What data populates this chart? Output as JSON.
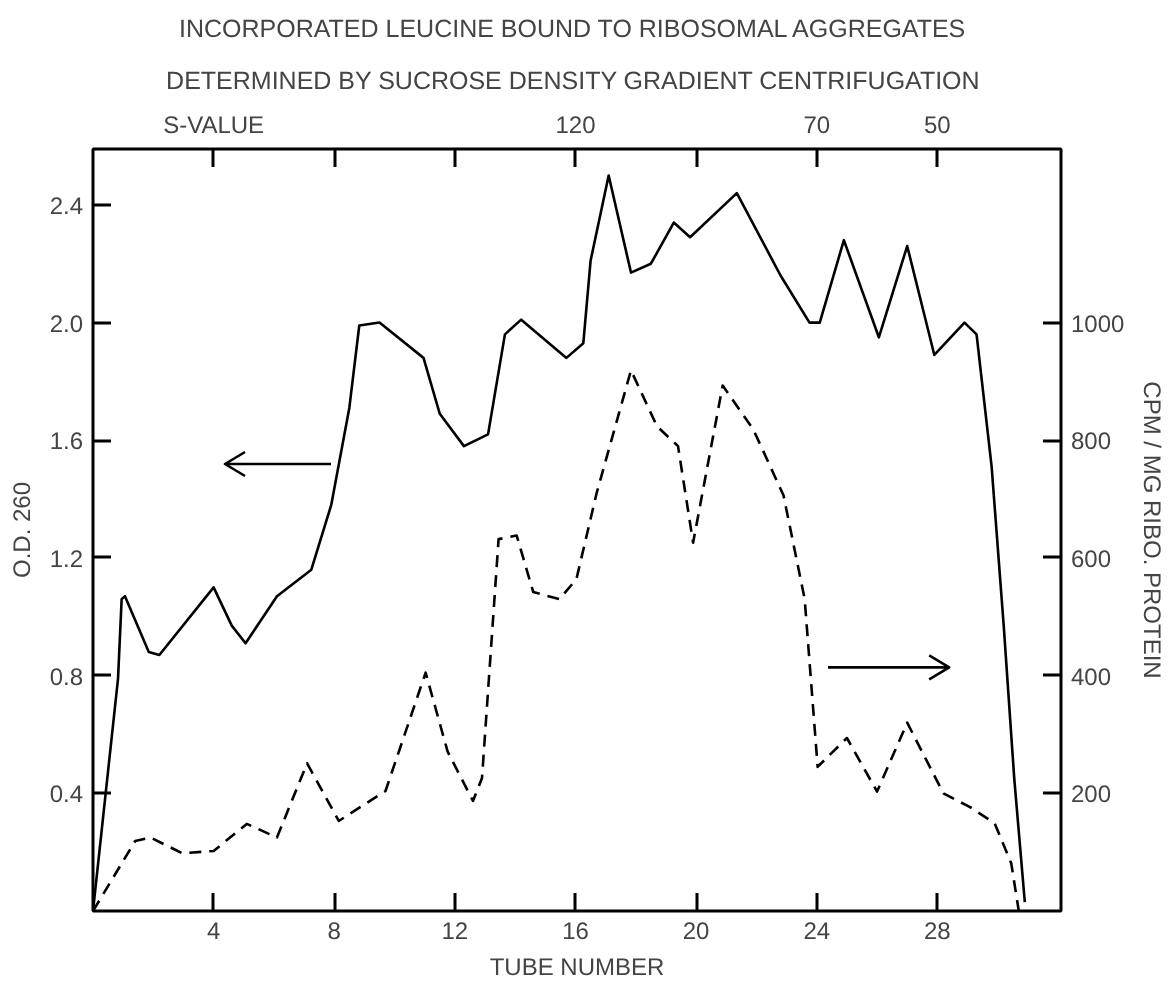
{
  "chart_data": {
    "type": "line",
    "title": "INCORPORATED LEUCINE  BOUND TO RIBOSOMAL AGGREGATES",
    "subtitle": "DETERMINED BY SUCROSE  DENSITY GRADIENT CENTRIFUGATION",
    "xlabel": "TUBE NUMBER",
    "ylabel": "O.D. 260",
    "y2label": "CPM / MG RIBO. PROTEIN",
    "x2label": "S-VALUE",
    "xlim": [
      0,
      32.1
    ],
    "xticks": [
      4,
      8,
      12,
      16,
      20,
      24,
      28
    ],
    "annotations": [
      {
        "text": "120",
        "x": 16
      },
      {
        "text": "70",
        "x": 24
      },
      {
        "text": "50",
        "x": 28
      }
    ],
    "ylim": [
      0,
      2.59
    ],
    "yticks": [
      {
        "value": 0.4,
        "label": "0.4"
      },
      {
        "value": 0.8,
        "label": "0.8"
      },
      {
        "value": 1.2,
        "label": "1.2"
      },
      {
        "value": 1.6,
        "label": "1.6"
      },
      {
        "value": 2.0,
        "label": "2.0"
      },
      {
        "value": 2.4,
        "label": "2.4"
      }
    ],
    "y2lim": [
      0,
      1295
    ],
    "y2ticks": [
      200,
      400,
      600,
      800,
      1000
    ],
    "grid": false,
    "marker": "none",
    "series": [
      {
        "color": "#000000",
        "line_style": "solid",
        "axis": "y",
        "x": [
          0,
          0.83,
          0.95,
          1.06,
          1.85,
          2.2,
          4.0,
          4.6,
          5.06,
          6.1,
          7.24,
          7.9,
          8.5,
          8.83,
          9.5,
          10.96,
          11.5,
          12.3,
          13.1,
          13.66,
          14.2,
          15.7,
          16.26,
          16.5,
          17.1,
          17.84,
          18.5,
          19.26,
          19.8,
          21.35,
          22.8,
          23.76,
          24.1,
          24.9,
          26.06,
          27.0,
          27.9,
          28.9,
          29.3,
          29.8,
          30.2,
          30.55,
          30.9
        ],
        "values": [
          0,
          0.79,
          1.06,
          1.07,
          0.88,
          0.87,
          1.1,
          0.97,
          0.91,
          1.07,
          1.16,
          1.38,
          1.71,
          1.99,
          2.0,
          1.88,
          1.69,
          1.58,
          1.62,
          1.96,
          2.01,
          1.88,
          1.93,
          2.21,
          2.5,
          2.17,
          2.2,
          2.34,
          2.29,
          2.44,
          2.16,
          2.0,
          2.0,
          2.28,
          1.95,
          2.26,
          1.89,
          2.0,
          1.96,
          1.51,
          0.97,
          0.45,
          0.03
        ]
      },
      {
        "color": "#000000",
        "line_style": "dashed",
        "axis": "y2",
        "x": [
          0,
          1.4,
          1.9,
          2.97,
          4.0,
          5.1,
          6.1,
          7.1,
          8.15,
          9.7,
          11.03,
          11.76,
          12.6,
          12.9,
          13.45,
          14.05,
          14.6,
          15.47,
          16.03,
          16.7,
          17.84,
          18.7,
          19.4,
          19.9,
          20.88,
          21.9,
          22.9,
          23.6,
          24.03,
          25.0,
          26.0,
          27.0,
          28.2,
          29.1,
          29.9,
          30.45,
          30.7
        ],
        "values": [
          0,
          119,
          125,
          98,
          102,
          148,
          125,
          251,
          153,
          204,
          405,
          271,
          187,
          226,
          632,
          638,
          542,
          530,
          564,
          710,
          919,
          824,
          790,
          626,
          893,
          818,
          706,
          530,
          245,
          294,
          203,
          320,
          200,
          176,
          149,
          81,
          0
        ]
      }
    ]
  }
}
